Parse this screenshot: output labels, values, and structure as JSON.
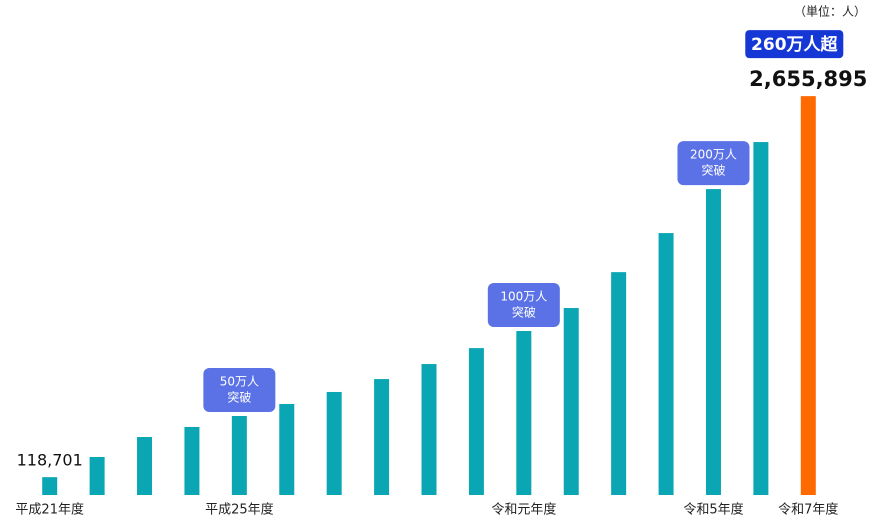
{
  "chart_data": {
    "type": "bar",
    "unit_note": "（単位：人）",
    "categories": [
      "平成21年度",
      null,
      null,
      null,
      "平成25年度",
      null,
      null,
      null,
      null,
      null,
      "令和元年度",
      null,
      null,
      null,
      "令和5年度",
      null,
      "令和7年度"
    ],
    "values": [
      118701,
      253000,
      386000,
      453000,
      526000,
      606000,
      686000,
      772000,
      872000,
      978000,
      1092000,
      1245000,
      1484000,
      1744000,
      2037000,
      2350000,
      2655895
    ],
    "value_labels": [
      "118,701",
      null,
      null,
      null,
      null,
      null,
      null,
      null,
      null,
      null,
      null,
      null,
      null,
      null,
      null,
      null,
      "2,655,895"
    ],
    "colors": [
      "#0aa6b4",
      "#0aa6b4",
      "#0aa6b4",
      "#0aa6b4",
      "#0aa6b4",
      "#0aa6b4",
      "#0aa6b4",
      "#0aa6b4",
      "#0aa6b4",
      "#0aa6b4",
      "#0aa6b4",
      "#0aa6b4",
      "#0aa6b4",
      "#0aa6b4",
      "#0aa6b4",
      "#0aa6b4",
      "#ff6a00"
    ],
    "callouts": [
      null,
      null,
      null,
      null,
      [
        "50万人",
        "突破"
      ],
      null,
      null,
      null,
      null,
      null,
      [
        "100万人",
        "突破"
      ],
      null,
      null,
      null,
      [
        "200万人",
        "突破"
      ],
      null,
      [
        "260万人超"
      ]
    ],
    "ylim": [
      0,
      2750000
    ]
  }
}
